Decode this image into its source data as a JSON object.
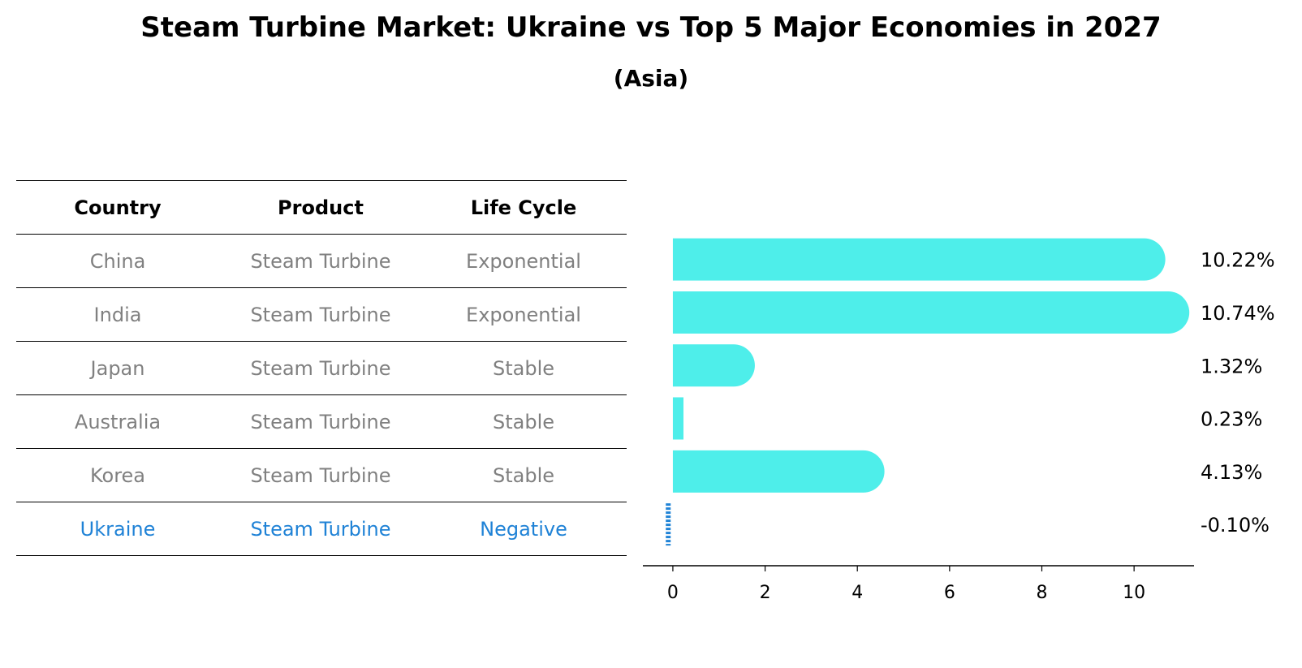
{
  "chart_data": {
    "type": "bar",
    "orientation": "horizontal",
    "title": "Steam Turbine Market: Ukraine vs Top 5 Major Economies in 2027",
    "subtitle": "(Asia)",
    "table_headers": [
      "Country",
      "Product",
      "Life Cycle"
    ],
    "rows": [
      {
        "country": "China",
        "product": "Steam Turbine",
        "life_cycle": "Exponential",
        "value": 10.22,
        "label": "10.22%"
      },
      {
        "country": "India",
        "product": "Steam Turbine",
        "life_cycle": "Exponential",
        "value": 10.74,
        "label": "10.74%"
      },
      {
        "country": "Japan",
        "product": "Steam Turbine",
        "life_cycle": "Stable",
        "value": 1.32,
        "label": "1.32%"
      },
      {
        "country": "Australia",
        "product": "Steam Turbine",
        "life_cycle": "Stable",
        "value": 0.23,
        "label": "0.23%"
      },
      {
        "country": "Korea",
        "product": "Steam Turbine",
        "life_cycle": "Stable",
        "value": 4.13,
        "label": "4.13%"
      },
      {
        "country": "Ukraine",
        "product": "Steam Turbine",
        "life_cycle": "Negative",
        "value": -0.1,
        "label": "-0.10%"
      }
    ],
    "xticks": [
      "0",
      "2",
      "4",
      "6",
      "8",
      "10"
    ],
    "xlim": [
      -0.65,
      11.3
    ],
    "colors": {
      "bar": "#4eeeea",
      "highlight": "#1f82d6",
      "muted_text": "#808080"
    }
  }
}
